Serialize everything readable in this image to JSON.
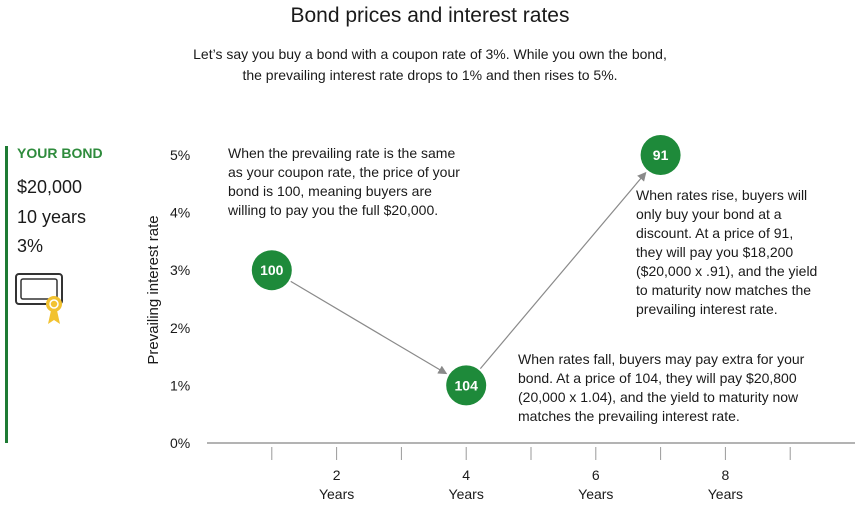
{
  "title": "Bond prices and interest rates",
  "subtitle_line1": "Let’s say you buy a bond with a coupon rate of 3%. While you own the bond,",
  "subtitle_line2": "the prevailing interest rate drops to 1% and then rises to 5%.",
  "your_bond": {
    "heading": "YOUR BOND",
    "amount": "$20,000",
    "term": "10 years",
    "coupon": "3%",
    "icon": "bond-certificate-icon",
    "accent_color": "#1e7b34"
  },
  "annotations": {
    "same_rate": [
      "When the prevailing rate is the same",
      "as your coupon rate, the price of your",
      "bond is 100, meaning buyers are",
      "willing to pay you the full $20,000."
    ],
    "rates_rise": [
      "When rates rise, buyers will",
      "only buy your bond at a",
      "discount. At a price of 91,",
      "they will pay you $18,200",
      "($20,000 x .91), and the yield",
      "to maturity now matches the",
      "prevailing interest rate."
    ],
    "rates_fall": [
      "When rates fall, buyers may pay extra for your",
      "bond. At a price of 104, they will pay $20,800",
      "(20,000 x 1.04), and the yield to maturity now",
      "matches the prevailing interest rate."
    ]
  },
  "chart_data": {
    "type": "scatter",
    "ylabel": "Prevailing interest rate",
    "xlabel": "",
    "ylim": [
      0,
      5
    ],
    "xlim": [
      0,
      10
    ],
    "y_ticks": [
      {
        "value": 0,
        "label": "0%"
      },
      {
        "value": 1,
        "label": "1%"
      },
      {
        "value": 2,
        "label": "2%"
      },
      {
        "value": 3,
        "label": "3%"
      },
      {
        "value": 4,
        "label": "4%"
      },
      {
        "value": 5,
        "label": "5%"
      }
    ],
    "x_ticks": [
      {
        "value": 2,
        "label": "2",
        "sublabel": "Years"
      },
      {
        "value": 4,
        "label": "4",
        "sublabel": "Years"
      },
      {
        "value": 6,
        "label": "6",
        "sublabel": "Years"
      },
      {
        "value": 8,
        "label": "8",
        "sublabel": "Years"
      }
    ],
    "points": [
      {
        "x": 1,
        "y": 3,
        "label": "100"
      },
      {
        "x": 4,
        "y": 1,
        "label": "104"
      },
      {
        "x": 7,
        "y": 5,
        "label": "91"
      }
    ],
    "colors": {
      "marker": "#1e8a3a",
      "arrow": "#8a8a8a",
      "axis": "#9a9a9a"
    },
    "grid": false
  }
}
